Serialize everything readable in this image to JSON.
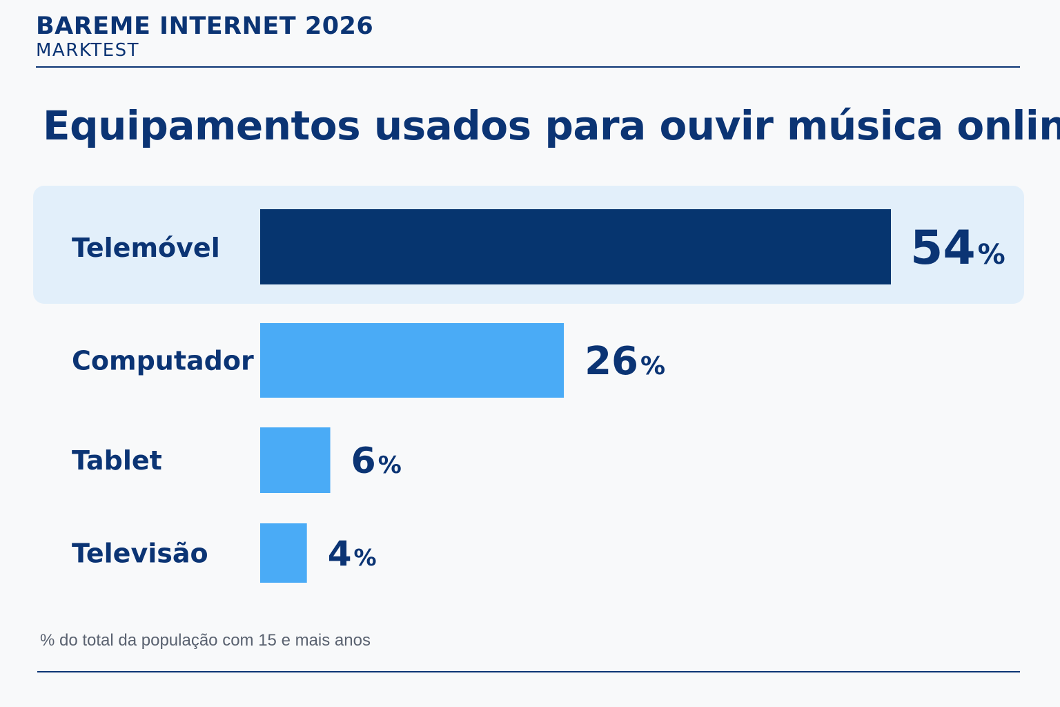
{
  "header": {
    "title": "BAREME INTERNET 2026",
    "subtitle": "MARKTEST"
  },
  "colors": {
    "primary": "#0b3474",
    "highlight_bar": "#06356f",
    "bar": "#4aabf6",
    "highlight_background": "#e2effa",
    "footnote": "#5a6270"
  },
  "chart_data": {
    "type": "bar",
    "orientation": "horizontal",
    "title": "Equipamentos usados para ouvir música online",
    "categories": [
      "Telemóvel",
      "Computador",
      "Tablet",
      "Televisão"
    ],
    "values": [
      54,
      26,
      6,
      4
    ],
    "value_suffix": "%",
    "highlighted_category": "Telemóvel",
    "xlim": [
      0,
      54
    ],
    "grid": false,
    "legend": "none",
    "footnote": "% do total da população com 15 e mais anos"
  }
}
